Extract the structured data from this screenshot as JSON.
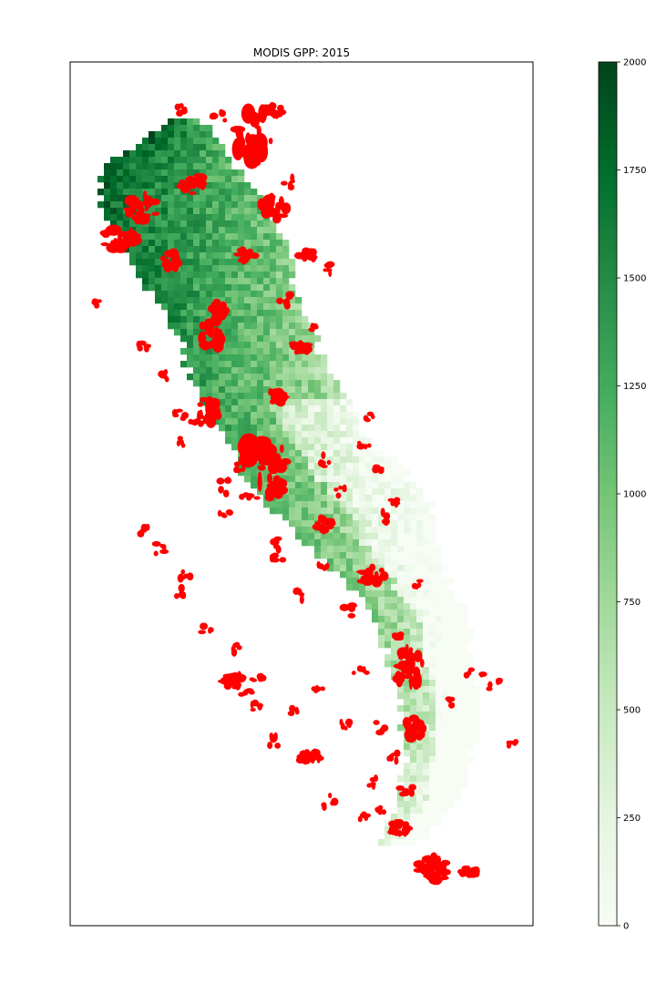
{
  "chart_data": {
    "type": "heatmap",
    "title": "MODIS GPP: 2015",
    "xlabel": "",
    "ylabel": "",
    "colormap": "Greens",
    "colorbar": {
      "range": [
        0,
        2000
      ],
      "ticks": [
        0,
        250,
        500,
        750,
        1000,
        1250,
        1500,
        1750,
        2000
      ],
      "tick_labels": [
        "0",
        "250",
        "500",
        "750",
        "1000",
        "1250",
        "1500",
        "1750",
        "2000"
      ]
    },
    "overlay": {
      "description_color": "#ff0000",
      "layer": "fire perimeters"
    },
    "axes_ticks_visible": false,
    "grid": false
  },
  "colors": {
    "overlay": "#ff0000",
    "cmap_low": "#f7fcf5",
    "cmap_high": "#00441b"
  }
}
